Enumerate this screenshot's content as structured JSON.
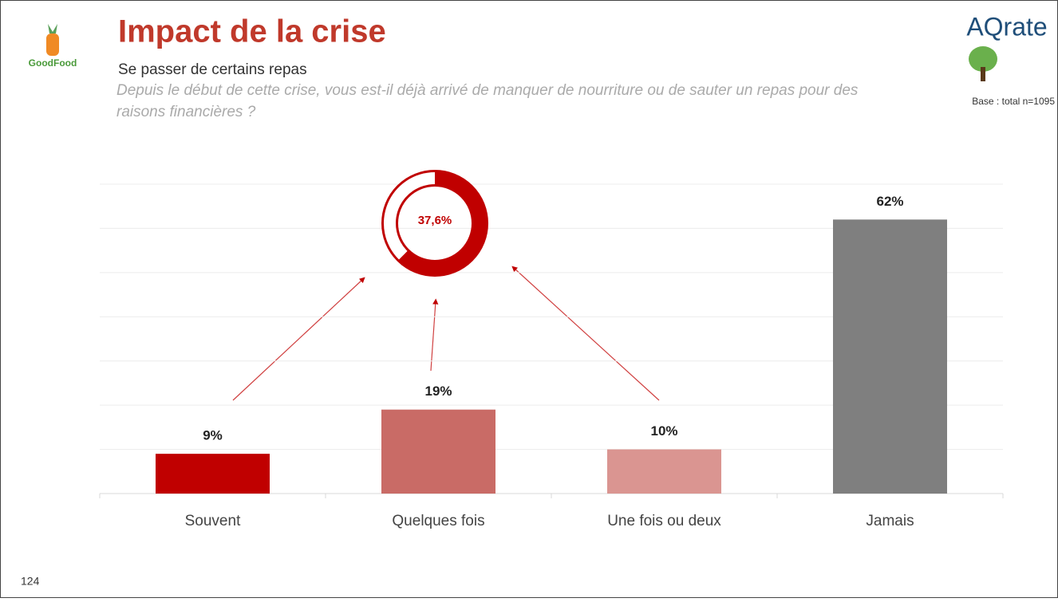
{
  "logo_left": "GoodFood",
  "logo_right": "AQrate",
  "base_note": "Base : total n=1095",
  "page_number": "124",
  "chart_data": {
    "type": "bar",
    "title": "Impact de la crise",
    "subtitle": "Se passer de certains repas",
    "question": "Depuis le début de cette crise, vous est-il déjà arrivé de manquer de nourriture ou de sauter un repas pour des raisons financières ?",
    "categories": [
      "Souvent",
      "Quelques fois",
      "Une fois ou deux",
      "Jamais"
    ],
    "values": [
      9,
      19,
      10,
      62
    ],
    "value_labels": [
      "9%",
      "19%",
      "10%",
      "62%"
    ],
    "colors": [
      "#c00000",
      "#c96b66",
      "#da9591",
      "#7f7f7f"
    ],
    "ylim": [
      0,
      70
    ],
    "yticks": [
      0,
      10,
      20,
      30,
      40,
      50,
      60,
      70
    ],
    "grid": true,
    "donut": {
      "value": 37.6,
      "label": "37,6%",
      "color": "#c00000"
    }
  }
}
